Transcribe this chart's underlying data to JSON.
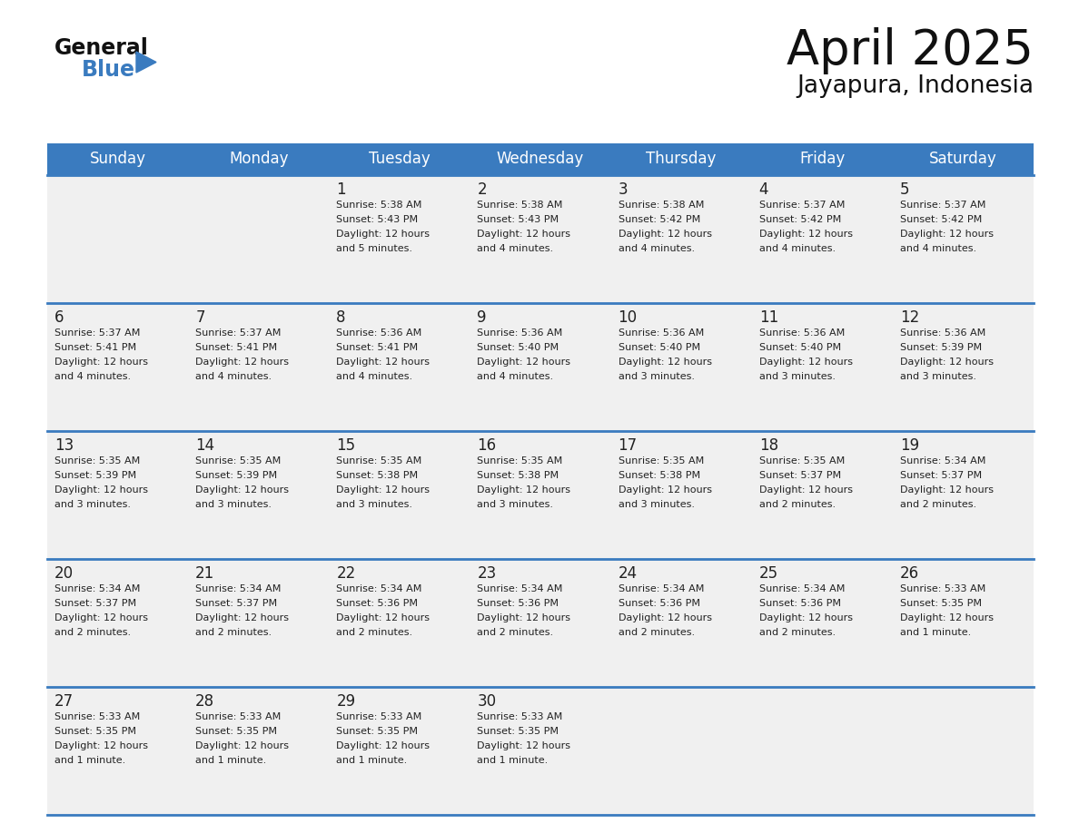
{
  "title": "April 2025",
  "subtitle": "Jayapura, Indonesia",
  "header_color": "#3a7bbf",
  "header_text_color": "#ffffff",
  "cell_bg_color": "#f0f0f0",
  "border_color": "#3a7bbf",
  "text_color": "#222222",
  "days_of_week": [
    "Sunday",
    "Monday",
    "Tuesday",
    "Wednesday",
    "Thursday",
    "Friday",
    "Saturday"
  ],
  "calendar_data": [
    [
      {
        "day": "",
        "sunrise": "",
        "sunset": "",
        "daylight": ""
      },
      {
        "day": "",
        "sunrise": "",
        "sunset": "",
        "daylight": ""
      },
      {
        "day": "1",
        "sunrise": "5:38 AM",
        "sunset": "5:43 PM",
        "daylight": "5 minutes."
      },
      {
        "day": "2",
        "sunrise": "5:38 AM",
        "sunset": "5:43 PM",
        "daylight": "4 minutes."
      },
      {
        "day": "3",
        "sunrise": "5:38 AM",
        "sunset": "5:42 PM",
        "daylight": "4 minutes."
      },
      {
        "day": "4",
        "sunrise": "5:37 AM",
        "sunset": "5:42 PM",
        "daylight": "4 minutes."
      },
      {
        "day": "5",
        "sunrise": "5:37 AM",
        "sunset": "5:42 PM",
        "daylight": "4 minutes."
      }
    ],
    [
      {
        "day": "6",
        "sunrise": "5:37 AM",
        "sunset": "5:41 PM",
        "daylight": "4 minutes."
      },
      {
        "day": "7",
        "sunrise": "5:37 AM",
        "sunset": "5:41 PM",
        "daylight": "4 minutes."
      },
      {
        "day": "8",
        "sunrise": "5:36 AM",
        "sunset": "5:41 PM",
        "daylight": "4 minutes."
      },
      {
        "day": "9",
        "sunrise": "5:36 AM",
        "sunset": "5:40 PM",
        "daylight": "4 minutes."
      },
      {
        "day": "10",
        "sunrise": "5:36 AM",
        "sunset": "5:40 PM",
        "daylight": "3 minutes."
      },
      {
        "day": "11",
        "sunrise": "5:36 AM",
        "sunset": "5:40 PM",
        "daylight": "3 minutes."
      },
      {
        "day": "12",
        "sunrise": "5:36 AM",
        "sunset": "5:39 PM",
        "daylight": "3 minutes."
      }
    ],
    [
      {
        "day": "13",
        "sunrise": "5:35 AM",
        "sunset": "5:39 PM",
        "daylight": "3 minutes."
      },
      {
        "day": "14",
        "sunrise": "5:35 AM",
        "sunset": "5:39 PM",
        "daylight": "3 minutes."
      },
      {
        "day": "15",
        "sunrise": "5:35 AM",
        "sunset": "5:38 PM",
        "daylight": "3 minutes."
      },
      {
        "day": "16",
        "sunrise": "5:35 AM",
        "sunset": "5:38 PM",
        "daylight": "3 minutes."
      },
      {
        "day": "17",
        "sunrise": "5:35 AM",
        "sunset": "5:38 PM",
        "daylight": "3 minutes."
      },
      {
        "day": "18",
        "sunrise": "5:35 AM",
        "sunset": "5:37 PM",
        "daylight": "2 minutes."
      },
      {
        "day": "19",
        "sunrise": "5:34 AM",
        "sunset": "5:37 PM",
        "daylight": "2 minutes."
      }
    ],
    [
      {
        "day": "20",
        "sunrise": "5:34 AM",
        "sunset": "5:37 PM",
        "daylight": "2 minutes."
      },
      {
        "day": "21",
        "sunrise": "5:34 AM",
        "sunset": "5:37 PM",
        "daylight": "2 minutes."
      },
      {
        "day": "22",
        "sunrise": "5:34 AM",
        "sunset": "5:36 PM",
        "daylight": "2 minutes."
      },
      {
        "day": "23",
        "sunrise": "5:34 AM",
        "sunset": "5:36 PM",
        "daylight": "2 minutes."
      },
      {
        "day": "24",
        "sunrise": "5:34 AM",
        "sunset": "5:36 PM",
        "daylight": "2 minutes."
      },
      {
        "day": "25",
        "sunrise": "5:34 AM",
        "sunset": "5:36 PM",
        "daylight": "2 minutes."
      },
      {
        "day": "26",
        "sunrise": "5:33 AM",
        "sunset": "5:35 PM",
        "daylight": "1 minute."
      }
    ],
    [
      {
        "day": "27",
        "sunrise": "5:33 AM",
        "sunset": "5:35 PM",
        "daylight": "1 minute."
      },
      {
        "day": "28",
        "sunrise": "5:33 AM",
        "sunset": "5:35 PM",
        "daylight": "1 minute."
      },
      {
        "day": "29",
        "sunrise": "5:33 AM",
        "sunset": "5:35 PM",
        "daylight": "1 minute."
      },
      {
        "day": "30",
        "sunrise": "5:33 AM",
        "sunset": "5:35 PM",
        "daylight": "1 minute."
      },
      {
        "day": "",
        "sunrise": "",
        "sunset": "",
        "daylight": ""
      },
      {
        "day": "",
        "sunrise": "",
        "sunset": "",
        "daylight": ""
      },
      {
        "day": "",
        "sunrise": "",
        "sunset": "",
        "daylight": ""
      }
    ]
  ]
}
